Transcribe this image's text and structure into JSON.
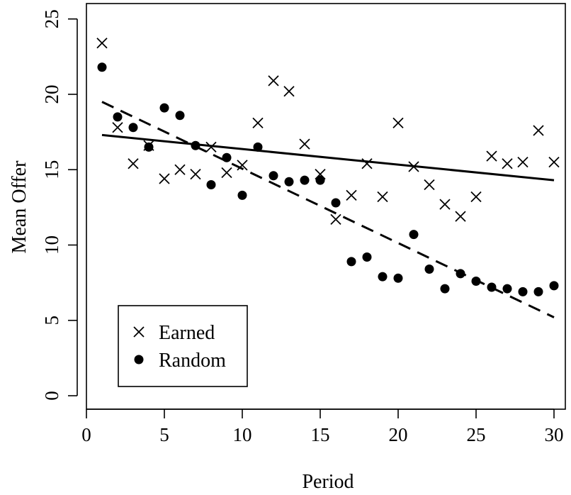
{
  "chart_data": {
    "type": "scatter",
    "xlabel": "Period",
    "ylabel": "Mean Offer",
    "xlim": [
      0,
      31
    ],
    "ylim": [
      0,
      26
    ],
    "xticks": [
      0,
      5,
      10,
      15,
      20,
      25,
      30
    ],
    "yticks": [
      0,
      5,
      10,
      15,
      20,
      25
    ],
    "legend_position": "bottom-left",
    "series": [
      {
        "name": "Earned",
        "marker": "x",
        "x": [
          1,
          2,
          3,
          4,
          5,
          6,
          7,
          8,
          9,
          10,
          11,
          12,
          13,
          14,
          15,
          16,
          17,
          18,
          19,
          20,
          21,
          22,
          23,
          24,
          25,
          26,
          27,
          28,
          29,
          30
        ],
        "y": [
          23.4,
          17.8,
          15.4,
          16.6,
          14.4,
          15.0,
          14.7,
          16.5,
          14.8,
          15.3,
          18.1,
          20.9,
          20.2,
          16.7,
          14.7,
          11.7,
          13.3,
          15.4,
          13.2,
          18.1,
          15.2,
          14.0,
          12.7,
          11.9,
          13.2,
          15.9,
          15.4,
          15.5,
          17.6,
          15.5
        ],
        "trend": {
          "style": "solid",
          "x": [
            1,
            30
          ],
          "y": [
            17.3,
            14.3
          ]
        }
      },
      {
        "name": "Random",
        "marker": "filled-circle",
        "x": [
          1,
          2,
          3,
          4,
          5,
          6,
          7,
          8,
          9,
          10,
          11,
          12,
          13,
          14,
          15,
          16,
          17,
          18,
          19,
          20,
          21,
          22,
          23,
          24,
          25,
          26,
          27,
          28,
          29,
          30
        ],
        "y": [
          21.8,
          18.5,
          17.8,
          16.5,
          19.1,
          18.6,
          16.6,
          14.0,
          15.8,
          13.3,
          16.5,
          14.6,
          14.2,
          14.3,
          14.3,
          12.8,
          8.9,
          9.2,
          7.9,
          7.8,
          10.7,
          8.4,
          7.1,
          8.1,
          7.6,
          7.2,
          7.1,
          6.9,
          6.9,
          7.3
        ],
        "trend": {
          "style": "dashed",
          "x": [
            1,
            30
          ],
          "y": [
            19.5,
            5.2
          ]
        }
      }
    ]
  }
}
